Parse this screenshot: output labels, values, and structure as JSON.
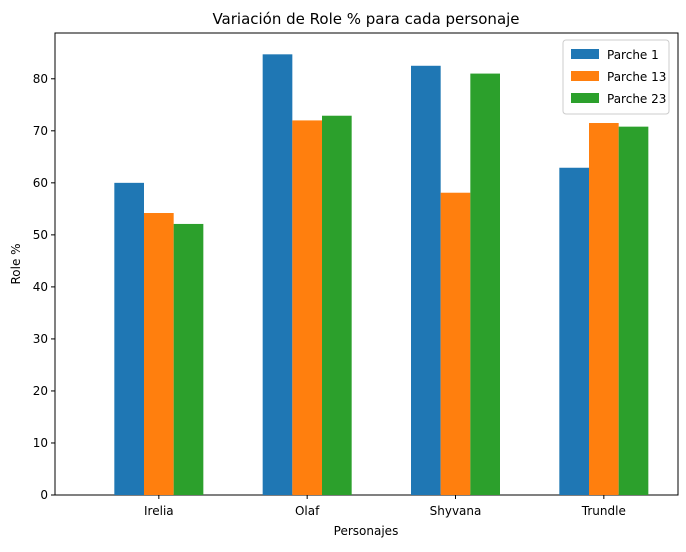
{
  "chart_data": {
    "type": "bar",
    "title": "Variación de Role % para cada personaje",
    "xlabel": "Personajes",
    "ylabel": "Role %",
    "categories": [
      "Irelia",
      "Olaf",
      "Shyvana",
      "Trundle"
    ],
    "series": [
      {
        "name": "Parche 1",
        "values": [
          60.0,
          84.7,
          82.5,
          62.9
        ],
        "color": "#1f77b4"
      },
      {
        "name": "Parche 13",
        "values": [
          54.2,
          72.0,
          58.1,
          71.5
        ],
        "color": "#ff7f0e"
      },
      {
        "name": "Parche 23",
        "values": [
          52.1,
          72.9,
          81.0,
          70.8
        ],
        "color": "#2ca02c"
      }
    ],
    "ylim": [
      0,
      88.8
    ],
    "yticks": [
      0,
      10,
      20,
      30,
      40,
      50,
      60,
      70,
      80
    ],
    "grid": false,
    "legend_position": "top-right"
  }
}
